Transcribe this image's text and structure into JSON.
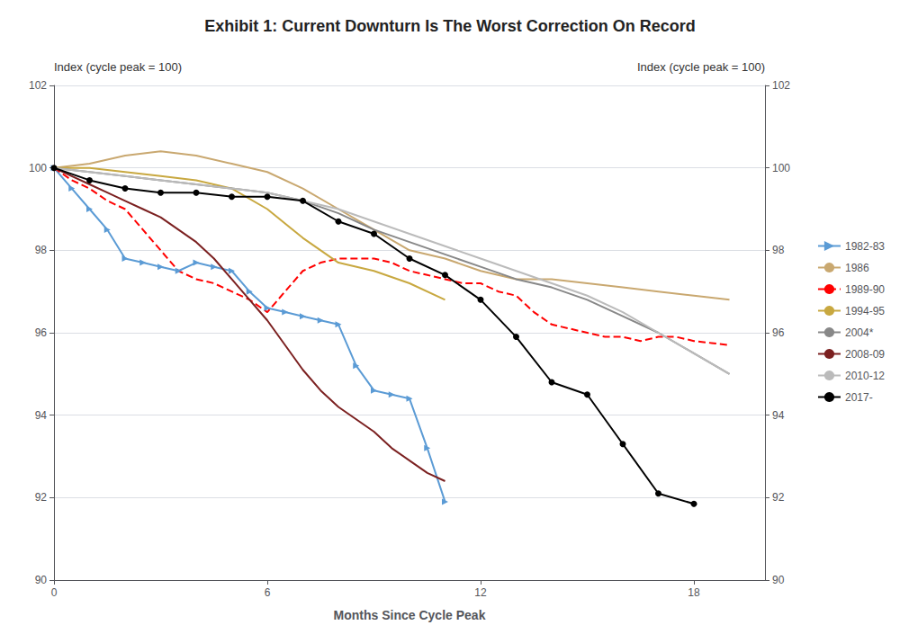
{
  "chart_data": {
    "type": "line",
    "title": "Exhibit 1: Current Downturn Is The Worst Correction On Record",
    "xlabel": "Months Since Cycle Peak",
    "ylabel": "Index (cycle peak = 100)",
    "y2label": "Index (cycle peak = 100)",
    "xlim": [
      0,
      20
    ],
    "xticks": [
      0,
      6,
      12,
      18
    ],
    "ylim": [
      90,
      102
    ],
    "yticks": [
      90,
      92,
      94,
      96,
      98,
      100,
      102
    ],
    "y2lim": [
      90,
      102
    ],
    "y2ticks": [
      90,
      92,
      94,
      96,
      98,
      100,
      102
    ],
    "grid": true,
    "legend": "right",
    "series": [
      {
        "name": "1982-83",
        "color": "#5B9BD5",
        "line_style": "solid",
        "marker": "triangle-right",
        "x": [
          0,
          0.5,
          1,
          1.5,
          2,
          2.5,
          3,
          3.5,
          4,
          4.5,
          5,
          5.5,
          6,
          6.5,
          7,
          7.5,
          8,
          8.5,
          9,
          9.5,
          10,
          10.5,
          11
        ],
        "values": [
          100,
          99.5,
          99.0,
          98.5,
          97.8,
          97.7,
          97.6,
          97.5,
          97.7,
          97.6,
          97.5,
          97.0,
          96.6,
          96.5,
          96.4,
          96.3,
          96.2,
          95.2,
          94.6,
          94.5,
          94.4,
          93.2,
          91.9
        ]
      },
      {
        "name": "1986",
        "color": "#C9A870",
        "line_style": "solid",
        "x": [
          0,
          1,
          2,
          3,
          4,
          5,
          6,
          7,
          8,
          9,
          10,
          11,
          12,
          13,
          14,
          15,
          16,
          17,
          18,
          19
        ],
        "values": [
          100,
          100.1,
          100.3,
          100.4,
          100.3,
          100.1,
          99.9,
          99.5,
          99.0,
          98.5,
          98.0,
          97.8,
          97.5,
          97.3,
          97.3,
          97.2,
          97.1,
          97.0,
          96.9,
          96.8
        ]
      },
      {
        "name": "1989-90",
        "color": "#FF0000",
        "line_style": "dashed",
        "x": [
          0,
          0.5,
          1,
          1.5,
          2,
          2.5,
          3,
          3.5,
          4,
          4.5,
          5,
          5.5,
          6,
          6.5,
          7,
          7.5,
          8,
          8.5,
          9,
          9.5,
          10,
          10.5,
          11,
          11.5,
          12,
          12.5,
          13,
          13.5,
          14,
          14.5,
          15,
          15.5,
          16,
          16.5,
          17,
          17.5,
          18,
          18.5,
          19
        ],
        "values": [
          100,
          99.7,
          99.5,
          99.2,
          99.0,
          98.5,
          98.0,
          97.5,
          97.3,
          97.2,
          97.0,
          96.8,
          96.5,
          97.0,
          97.5,
          97.7,
          97.8,
          97.8,
          97.8,
          97.7,
          97.5,
          97.4,
          97.3,
          97.2,
          97.2,
          97.0,
          96.9,
          96.5,
          96.2,
          96.1,
          96.0,
          95.9,
          95.9,
          95.8,
          95.9,
          95.9,
          95.8,
          95.75,
          95.7
        ]
      },
      {
        "name": "1994-95",
        "color": "#C8A840",
        "line_style": "solid",
        "x": [
          0,
          1,
          2,
          3,
          4,
          5,
          6,
          7,
          8,
          9,
          10,
          11
        ],
        "values": [
          100,
          100.0,
          99.9,
          99.8,
          99.7,
          99.5,
          99.0,
          98.3,
          97.7,
          97.5,
          97.2,
          96.8
        ]
      },
      {
        "name": "2004*",
        "color": "#888888",
        "line_style": "solid",
        "x": [
          0,
          1,
          2,
          3,
          4,
          5,
          6,
          7,
          8,
          9,
          10,
          11,
          12,
          13,
          14,
          15,
          16,
          17,
          18,
          19
        ],
        "values": [
          100,
          99.9,
          99.8,
          99.7,
          99.6,
          99.5,
          99.4,
          99.2,
          98.9,
          98.5,
          98.2,
          97.9,
          97.6,
          97.3,
          97.1,
          96.8,
          96.4,
          96.0,
          95.5,
          95.0
        ]
      },
      {
        "name": "2008-09",
        "color": "#7B2020",
        "line_style": "solid",
        "x": [
          0,
          0.5,
          1,
          1.5,
          2,
          2.5,
          3,
          3.5,
          4,
          4.5,
          5,
          5.5,
          6,
          6.5,
          7,
          7.5,
          8,
          8.5,
          9,
          9.5,
          10,
          10.5,
          11
        ],
        "values": [
          100,
          99.8,
          99.6,
          99.4,
          99.2,
          99.0,
          98.8,
          98.5,
          98.2,
          97.8,
          97.3,
          96.8,
          96.3,
          95.7,
          95.1,
          94.6,
          94.2,
          93.9,
          93.6,
          93.2,
          92.9,
          92.6,
          92.4
        ]
      },
      {
        "name": "2010-12",
        "color": "#BBBBBB",
        "line_style": "solid",
        "x": [
          0,
          1,
          2,
          3,
          4,
          5,
          6,
          7,
          8,
          9,
          10,
          11,
          12,
          13,
          14,
          15,
          16,
          17,
          18,
          19
        ],
        "values": [
          100,
          99.9,
          99.8,
          99.7,
          99.6,
          99.5,
          99.4,
          99.2,
          99.0,
          98.7,
          98.4,
          98.1,
          97.8,
          97.5,
          97.2,
          96.9,
          96.5,
          96.0,
          95.5,
          95.0
        ]
      },
      {
        "name": "2017-",
        "color": "#000000",
        "line_style": "solid",
        "marker": "circle",
        "x": [
          0,
          1,
          2,
          3,
          4,
          5,
          6,
          7,
          8,
          9,
          10,
          11,
          12,
          13,
          14,
          15,
          16,
          17,
          18
        ],
        "values": [
          100,
          99.7,
          99.5,
          99.4,
          99.4,
          99.3,
          99.3,
          99.2,
          98.7,
          98.4,
          97.8,
          97.4,
          96.8,
          95.9,
          94.8,
          94.5,
          93.3,
          92.1,
          91.85
        ]
      }
    ]
  }
}
